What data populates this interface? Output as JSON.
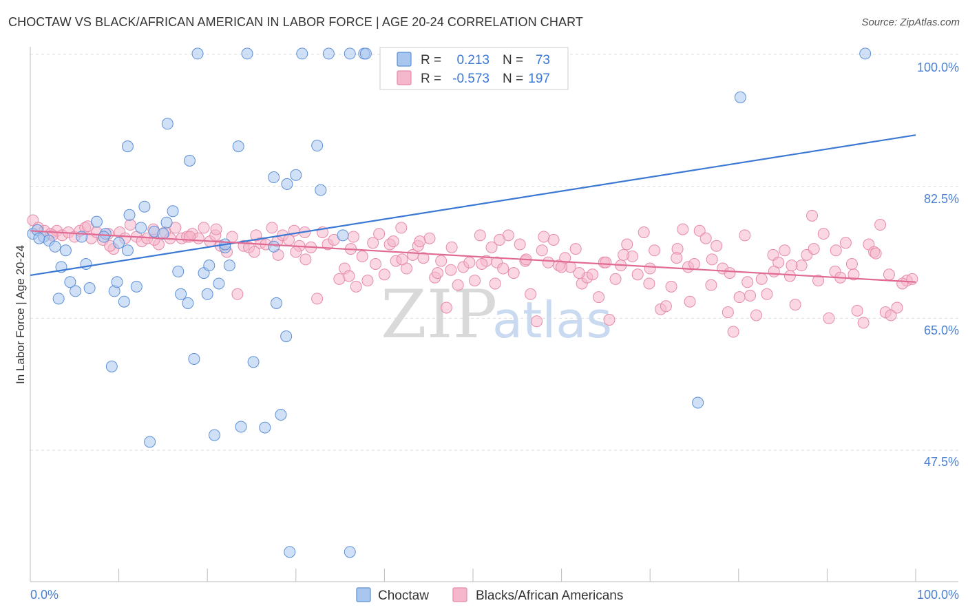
{
  "title": "CHOCTAW VS BLACK/AFRICAN AMERICAN IN LABOR FORCE | AGE 20-24 CORRELATION CHART",
  "source": "Source: ZipAtlas.com",
  "watermark": {
    "zip": "ZIP",
    "atlas": "atlas"
  },
  "stats": {
    "r_label": "R =",
    "n_label": "N =",
    "rows": [
      {
        "r": "0.213",
        "n": "73"
      },
      {
        "r": "-0.573",
        "n": "197"
      }
    ]
  },
  "legend": {
    "items": [
      "Choctaw",
      "Blacks/African Americans"
    ]
  },
  "colors": {
    "blue_fill": "#a9c7ee",
    "blue_stroke": "#5b8fd6",
    "blue_line": "#3a78d4",
    "pink_fill": "#f5b7cb",
    "pink_stroke": "#e58aa8",
    "pink_line": "#e06a94",
    "tick_text": "#4a7fd1",
    "grid": "#dddddd"
  },
  "chart_data": {
    "type": "scatter",
    "xlabel": "",
    "ylabel": "In Labor Force | Age 20-24",
    "xlim": [
      0,
      100
    ],
    "ylim": [
      32,
      102
    ],
    "x_tick_labels": [
      "0.0%",
      "100.0%"
    ],
    "y_ticks": [
      47.5,
      65.0,
      82.5,
      100.0
    ],
    "y_tick_labels": [
      "47.5%",
      "65.0%",
      "82.5%",
      "100.0%"
    ],
    "grid": true,
    "legend_position": "bottom-center",
    "series": [
      {
        "name": "Choctaw",
        "r": 0.213,
        "n": 73,
        "trend": {
          "x": [
            0,
            100
          ],
          "y": [
            70.7,
            89.3
          ]
        },
        "points": [
          [
            0.3,
            76.2
          ],
          [
            0.8,
            76.7
          ],
          [
            1.5,
            75.8
          ],
          [
            2.1,
            75.3
          ],
          [
            2.8,
            74.5
          ],
          [
            4.0,
            74.0
          ],
          [
            5.8,
            75.8
          ],
          [
            7.5,
            77.8
          ],
          [
            8.5,
            76.2
          ],
          [
            10.0,
            75.0
          ],
          [
            12.5,
            77.0
          ],
          [
            14.0,
            76.5
          ],
          [
            15.0,
            76.2
          ],
          [
            3.5,
            71.8
          ],
          [
            6.3,
            72.2
          ],
          [
            11.0,
            74.0
          ],
          [
            3.2,
            67.6
          ],
          [
            4.5,
            69.8
          ],
          [
            5.1,
            68.6
          ],
          [
            6.7,
            69.0
          ],
          [
            9.5,
            68.6
          ],
          [
            9.8,
            69.8
          ],
          [
            10.6,
            67.2
          ],
          [
            12.0,
            69.2
          ],
          [
            16.7,
            71.2
          ],
          [
            17.0,
            68.2
          ],
          [
            17.8,
            67.0
          ],
          [
            19.6,
            71.0
          ],
          [
            20.0,
            68.2
          ],
          [
            20.2,
            72.0
          ],
          [
            21.3,
            69.6
          ],
          [
            22.5,
            72.0
          ],
          [
            22.0,
            74.4
          ],
          [
            27.5,
            74.5
          ],
          [
            27.8,
            67.0
          ],
          [
            28.9,
            62.6
          ],
          [
            18.5,
            59.6
          ],
          [
            25.2,
            59.2
          ],
          [
            9.2,
            58.6
          ],
          [
            20.8,
            49.5
          ],
          [
            23.8,
            50.6
          ],
          [
            26.5,
            50.5
          ],
          [
            28.3,
            52.2
          ],
          [
            13.5,
            48.6
          ],
          [
            29.3,
            34.0
          ],
          [
            36.1,
            34.0
          ],
          [
            11.2,
            78.7
          ],
          [
            12.9,
            79.8
          ],
          [
            16.1,
            79.2
          ],
          [
            15.4,
            77.7
          ],
          [
            11.0,
            87.8
          ],
          [
            15.5,
            90.8
          ],
          [
            18.0,
            85.9
          ],
          [
            23.5,
            87.8
          ],
          [
            32.4,
            87.9
          ],
          [
            27.5,
            83.7
          ],
          [
            30.0,
            84.0
          ],
          [
            29.0,
            82.8
          ],
          [
            32.8,
            82.0
          ],
          [
            18.9,
            100.1
          ],
          [
            24.5,
            100.1
          ],
          [
            30.7,
            100.1
          ],
          [
            33.7,
            100.1
          ],
          [
            36.1,
            100.1
          ],
          [
            37.7,
            100.1
          ],
          [
            37.9,
            100.1
          ],
          [
            94.3,
            100.1
          ],
          [
            80.2,
            94.3
          ],
          [
            75.4,
            53.8
          ],
          [
            35.3,
            76.0
          ],
          [
            22.0,
            74.8
          ],
          [
            8.3,
            75.8
          ],
          [
            1.0,
            75.6
          ]
        ]
      },
      {
        "name": "Blacks/African Americans",
        "r": -0.573,
        "n": 197,
        "trend": {
          "x": [
            0,
            100
          ],
          "y": [
            76.6,
            69.8
          ]
        },
        "points": [
          [
            0.3,
            78.0
          ],
          [
            0.9,
            77.0
          ],
          [
            1.6,
            76.6
          ],
          [
            2.3,
            76.2
          ],
          [
            3.0,
            76.6
          ],
          [
            3.6,
            76.0
          ],
          [
            4.3,
            76.4
          ],
          [
            5.0,
            75.8
          ],
          [
            5.6,
            76.6
          ],
          [
            6.2,
            77.0
          ],
          [
            6.9,
            75.6
          ],
          [
            7.5,
            76.4
          ],
          [
            8.2,
            75.4
          ],
          [
            8.8,
            76.2
          ],
          [
            9.4,
            74.2
          ],
          [
            10.1,
            76.4
          ],
          [
            10.7,
            75.6
          ],
          [
            11.3,
            77.4
          ],
          [
            12.0,
            75.8
          ],
          [
            12.6,
            75.2
          ],
          [
            13.2,
            75.6
          ],
          [
            13.9,
            76.8
          ],
          [
            14.5,
            74.8
          ],
          [
            15.2,
            76.4
          ],
          [
            15.8,
            75.6
          ],
          [
            16.4,
            77.0
          ],
          [
            17.1,
            75.6
          ],
          [
            17.7,
            75.8
          ],
          [
            18.3,
            76.2
          ],
          [
            19.0,
            75.6
          ],
          [
            19.6,
            77.0
          ],
          [
            20.3,
            75.2
          ],
          [
            20.9,
            76.0
          ],
          [
            21.5,
            74.6
          ],
          [
            22.2,
            73.8
          ],
          [
            22.8,
            75.8
          ],
          [
            23.4,
            68.2
          ],
          [
            24.1,
            74.6
          ],
          [
            24.7,
            74.4
          ],
          [
            25.3,
            73.8
          ],
          [
            26.0,
            75.0
          ],
          [
            26.6,
            74.8
          ],
          [
            27.3,
            77.0
          ],
          [
            27.9,
            75.2
          ],
          [
            28.5,
            76.0
          ],
          [
            29.2,
            75.4
          ],
          [
            29.8,
            76.6
          ],
          [
            30.4,
            74.6
          ],
          [
            31.1,
            72.8
          ],
          [
            31.7,
            74.4
          ],
          [
            32.4,
            67.6
          ],
          [
            33.0,
            76.4
          ],
          [
            33.6,
            74.8
          ],
          [
            34.3,
            75.4
          ],
          [
            34.9,
            70.2
          ],
          [
            35.5,
            71.6
          ],
          [
            36.2,
            74.2
          ],
          [
            36.8,
            69.2
          ],
          [
            37.5,
            73.2
          ],
          [
            38.1,
            70.0
          ],
          [
            38.7,
            75.0
          ],
          [
            39.4,
            76.2
          ],
          [
            40.0,
            70.8
          ],
          [
            40.6,
            74.8
          ],
          [
            41.3,
            72.6
          ],
          [
            41.9,
            77.0
          ],
          [
            42.5,
            71.6
          ],
          [
            43.2,
            73.4
          ],
          [
            43.8,
            74.6
          ],
          [
            44.4,
            73.0
          ],
          [
            45.1,
            75.6
          ],
          [
            45.7,
            70.4
          ],
          [
            46.4,
            72.6
          ],
          [
            47.0,
            66.4
          ],
          [
            47.6,
            74.4
          ],
          [
            48.3,
            69.4
          ],
          [
            48.9,
            71.8
          ],
          [
            49.6,
            72.4
          ],
          [
            50.2,
            70.0
          ],
          [
            50.8,
            76.0
          ],
          [
            51.5,
            72.6
          ],
          [
            52.1,
            74.4
          ],
          [
            52.7,
            72.4
          ],
          [
            53.4,
            71.6
          ],
          [
            54.0,
            76.0
          ],
          [
            54.6,
            71.0
          ],
          [
            55.3,
            74.8
          ],
          [
            55.9,
            72.6
          ],
          [
            56.5,
            68.2
          ],
          [
            57.2,
            64.6
          ],
          [
            57.8,
            74.0
          ],
          [
            58.5,
            72.4
          ],
          [
            59.1,
            75.4
          ],
          [
            59.7,
            72.0
          ],
          [
            60.4,
            73.0
          ],
          [
            61.0,
            71.8
          ],
          [
            61.6,
            74.2
          ],
          [
            62.3,
            69.6
          ],
          [
            62.9,
            70.4
          ],
          [
            63.5,
            70.8
          ],
          [
            64.2,
            67.8
          ],
          [
            64.8,
            72.4
          ],
          [
            65.4,
            64.8
          ],
          [
            66.1,
            70.2
          ],
          [
            66.7,
            72.0
          ],
          [
            67.4,
            74.8
          ],
          [
            68.0,
            73.2
          ],
          [
            68.6,
            70.8
          ],
          [
            69.3,
            76.4
          ],
          [
            69.9,
            69.6
          ],
          [
            70.5,
            74.0
          ],
          [
            71.2,
            66.2
          ],
          [
            71.8,
            66.6
          ],
          [
            72.4,
            69.2
          ],
          [
            73.1,
            74.2
          ],
          [
            73.7,
            76.8
          ],
          [
            74.3,
            71.8
          ],
          [
            75.0,
            72.2
          ],
          [
            75.6,
            76.6
          ],
          [
            76.3,
            75.6
          ],
          [
            76.9,
            69.4
          ],
          [
            77.5,
            74.6
          ],
          [
            78.2,
            71.6
          ],
          [
            78.8,
            65.8
          ],
          [
            79.4,
            63.2
          ],
          [
            80.1,
            67.8
          ],
          [
            80.7,
            76.0
          ],
          [
            81.3,
            68.0
          ],
          [
            82.0,
            65.4
          ],
          [
            82.6,
            70.2
          ],
          [
            83.2,
            68.2
          ],
          [
            83.9,
            73.4
          ],
          [
            84.5,
            72.4
          ],
          [
            85.2,
            74.0
          ],
          [
            85.8,
            70.6
          ],
          [
            86.4,
            66.8
          ],
          [
            87.1,
            72.0
          ],
          [
            87.7,
            73.4
          ],
          [
            88.3,
            78.6
          ],
          [
            89.0,
            70.0
          ],
          [
            89.6,
            76.2
          ],
          [
            90.2,
            65.0
          ],
          [
            90.9,
            71.2
          ],
          [
            91.5,
            70.4
          ],
          [
            92.1,
            75.0
          ],
          [
            92.8,
            72.2
          ],
          [
            93.4,
            66.0
          ],
          [
            94.1,
            64.4
          ],
          [
            94.7,
            74.8
          ],
          [
            95.3,
            73.8
          ],
          [
            96.0,
            77.4
          ],
          [
            96.6,
            65.8
          ],
          [
            97.2,
            65.4
          ],
          [
            97.9,
            66.4
          ],
          [
            99.0,
            70.0
          ],
          [
            99.6,
            70.2
          ],
          [
            2.5,
            76.0
          ],
          [
            6.5,
            77.2
          ],
          [
            9.0,
            74.6
          ],
          [
            14.0,
            75.4
          ],
          [
            18.0,
            75.8
          ],
          [
            21.0,
            76.8
          ],
          [
            25.5,
            76.0
          ],
          [
            28.0,
            73.4
          ],
          [
            31.0,
            76.4
          ],
          [
            36.0,
            70.6
          ],
          [
            39.0,
            72.2
          ],
          [
            42.0,
            72.8
          ],
          [
            44.0,
            75.2
          ],
          [
            47.5,
            71.4
          ],
          [
            51.0,
            72.2
          ],
          [
            53.0,
            75.4
          ],
          [
            56.0,
            72.8
          ],
          [
            58.0,
            75.8
          ],
          [
            60.0,
            71.8
          ],
          [
            62.0,
            71.0
          ],
          [
            65.0,
            72.4
          ],
          [
            67.0,
            73.4
          ],
          [
            70.0,
            71.6
          ],
          [
            73.0,
            73.0
          ],
          [
            74.5,
            67.2
          ],
          [
            77.0,
            72.8
          ],
          [
            79.0,
            71.0
          ],
          [
            81.0,
            69.8
          ],
          [
            84.0,
            71.2
          ],
          [
            86.0,
            72.0
          ],
          [
            88.5,
            74.2
          ],
          [
            91.0,
            74.0
          ],
          [
            93.0,
            70.8
          ],
          [
            95.5,
            73.6
          ],
          [
            97.0,
            70.8
          ],
          [
            98.5,
            69.6
          ],
          [
            30.0,
            73.8
          ],
          [
            36.5,
            75.8
          ],
          [
            41.0,
            75.2
          ],
          [
            46.0,
            71.0
          ],
          [
            52.5,
            69.6
          ]
        ]
      }
    ]
  }
}
